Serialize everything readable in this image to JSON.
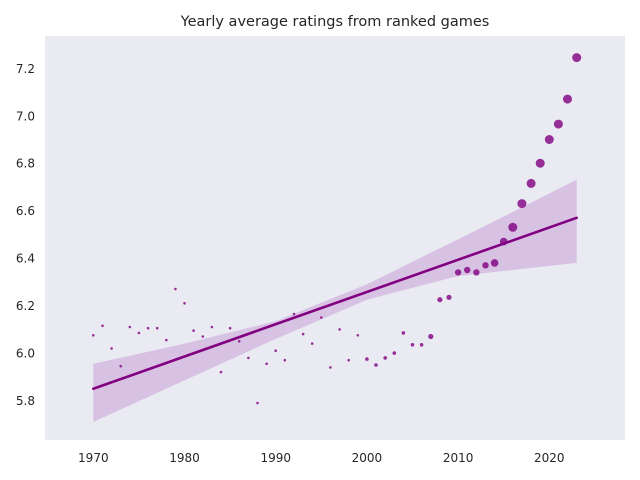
{
  "chart_data": {
    "type": "scatter",
    "title": "Yearly average ratings from ranked games",
    "xlabel": "",
    "ylabel": "",
    "xlim": [
      1964.7,
      2028.3
    ],
    "ylim": [
      5.634,
      7.336
    ],
    "grid": false,
    "x_ticks": [
      "1970",
      "1980",
      "1990",
      "2000",
      "2010",
      "2020"
    ],
    "y_ticks": [
      "5.8",
      "6.0",
      "6.2",
      "6.4",
      "6.6",
      "6.8",
      "7.0",
      "7.2"
    ],
    "x": [
      1970,
      1971,
      1972,
      1973,
      1974,
      1975,
      1976,
      1977,
      1978,
      1979,
      1980,
      1981,
      1982,
      1983,
      1984,
      1985,
      1986,
      1987,
      1988,
      1989,
      1990,
      1991,
      1992,
      1993,
      1994,
      1995,
      1996,
      1997,
      1998,
      1999,
      2000,
      2001,
      2002,
      2003,
      2004,
      2005,
      2006,
      2007,
      2008,
      2009,
      2010,
      2011,
      2012,
      2013,
      2014,
      2015,
      2016,
      2017,
      2018,
      2019,
      2020,
      2021,
      2022,
      2023
    ],
    "y": [
      6.075,
      6.115,
      6.02,
      5.945,
      6.11,
      6.085,
      6.105,
      6.105,
      6.055,
      6.27,
      6.21,
      6.095,
      6.07,
      6.11,
      5.92,
      6.105,
      6.05,
      5.98,
      5.79,
      5.955,
      6.01,
      5.97,
      6.165,
      6.08,
      6.04,
      6.15,
      5.94,
      6.1,
      5.97,
      6.075,
      5.975,
      5.95,
      5.98,
      6.0,
      6.085,
      6.035,
      6.035,
      6.07,
      6.225,
      6.235,
      6.34,
      6.35,
      6.34,
      6.37,
      6.38,
      6.47,
      6.53,
      6.63,
      6.715,
      6.8,
      6.9,
      6.965,
      7.07,
      7.245
    ],
    "size_rank": [
      1,
      1,
      1,
      1,
      1,
      1,
      1,
      1,
      1,
      1,
      1,
      1,
      1,
      1,
      1,
      1,
      1,
      1,
      1,
      1,
      1,
      1,
      1,
      1,
      1,
      1,
      1,
      1,
      1,
      1,
      2,
      2,
      2,
      2,
      2,
      2,
      2,
      3,
      3,
      3,
      4,
      4,
      4,
      4,
      5,
      5,
      6,
      6,
      6,
      6,
      6,
      6,
      6,
      6
    ],
    "trend_line": {
      "x": [
        1970,
        2023
      ],
      "y": [
        5.85,
        6.57
      ]
    },
    "confidence_band": {
      "x": [
        1970,
        1980,
        1990,
        2000,
        2010,
        2023
      ],
      "upper": [
        5.955,
        6.04,
        6.135,
        6.29,
        6.48,
        6.73
      ],
      "lower": [
        5.71,
        5.885,
        6.06,
        6.225,
        6.325,
        6.38
      ]
    },
    "colors": {
      "point": "#800080",
      "line": "#800080",
      "band": "#c9a0d8",
      "background": "#eaeaf2"
    }
  }
}
